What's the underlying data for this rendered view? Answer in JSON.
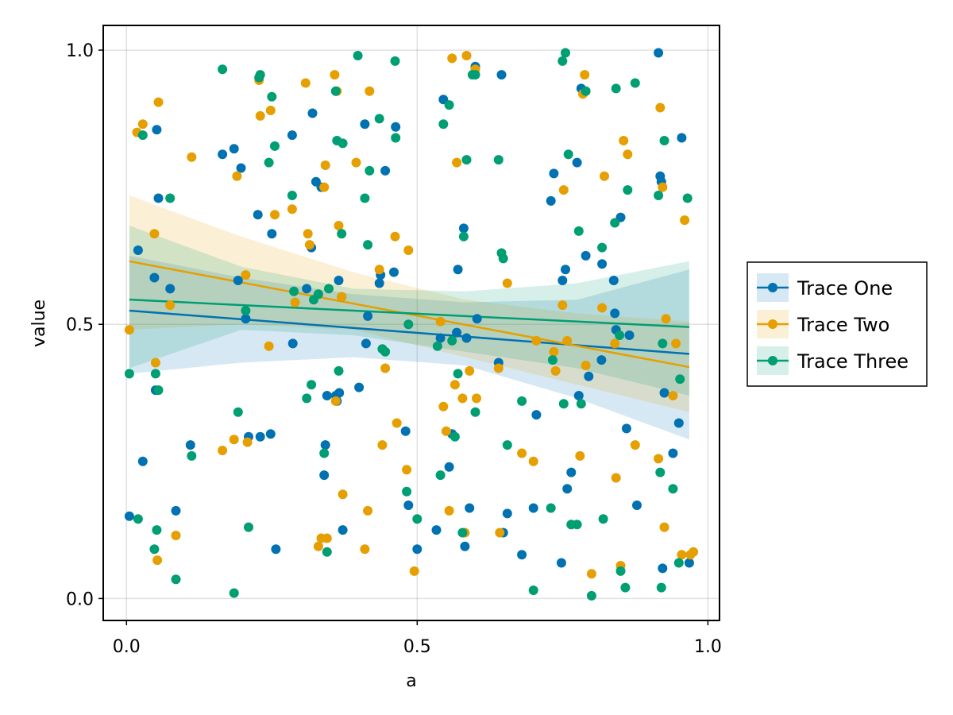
{
  "chart_data": {
    "type": "scatter",
    "title": "",
    "xlabel": "a",
    "ylabel": "value",
    "xlim": [
      -0.04,
      1.02
    ],
    "ylim": [
      -0.04,
      1.045
    ],
    "xticks": [
      0.0,
      0.5,
      1.0
    ],
    "yticks": [
      0.0,
      0.5,
      1.0
    ],
    "xtick_labels": [
      "0.0",
      "0.5",
      "1.0"
    ],
    "ytick_labels": [
      "0.0",
      "0.5",
      "1.0"
    ],
    "grid": true,
    "legend_position": "right",
    "series": [
      {
        "name": "Trace One",
        "color": "#0072B2",
        "fit": {
          "x0": 0.005,
          "y0": 0.525,
          "x1": 0.968,
          "y1": 0.446
        },
        "band": {
          "upper": [
            0.625,
            0.585,
            0.555,
            0.54,
            0.545,
            0.6
          ],
          "lower": [
            0.41,
            0.43,
            0.44,
            0.425,
            0.365,
            0.29
          ]
        },
        "x": [
          0.005,
          0.02,
          0.028,
          0.048,
          0.05,
          0.052,
          0.055,
          0.075,
          0.085,
          0.11,
          0.165,
          0.185,
          0.192,
          0.197,
          0.205,
          0.21,
          0.226,
          0.23,
          0.248,
          0.25,
          0.257,
          0.285,
          0.286,
          0.31,
          0.318,
          0.32,
          0.326,
          0.335,
          0.34,
          0.342,
          0.345,
          0.36,
          0.362,
          0.365,
          0.366,
          0.37,
          0.372,
          0.4,
          0.41,
          0.412,
          0.415,
          0.435,
          0.437,
          0.445,
          0.46,
          0.463,
          0.48,
          0.485,
          0.5,
          0.533,
          0.54,
          0.545,
          0.555,
          0.56,
          0.568,
          0.57,
          0.58,
          0.582,
          0.585,
          0.59,
          0.6,
          0.603,
          0.64,
          0.645,
          0.648,
          0.655,
          0.68,
          0.7,
          0.705,
          0.73,
          0.735,
          0.748,
          0.75,
          0.755,
          0.758,
          0.765,
          0.775,
          0.778,
          0.782,
          0.79,
          0.795,
          0.817,
          0.818,
          0.838,
          0.84,
          0.842,
          0.85,
          0.86,
          0.865,
          0.878,
          0.915,
          0.918,
          0.92,
          0.922,
          0.925,
          0.94,
          0.95,
          0.955,
          0.968
        ],
        "y": [
          0.15,
          0.635,
          0.25,
          0.585,
          0.38,
          0.855,
          0.73,
          0.565,
          0.16,
          0.28,
          0.81,
          0.82,
          0.58,
          0.785,
          0.51,
          0.295,
          0.7,
          0.295,
          0.3,
          0.665,
          0.09,
          0.845,
          0.465,
          0.565,
          0.64,
          0.885,
          0.76,
          0.75,
          0.225,
          0.28,
          0.37,
          0.37,
          0.36,
          0.58,
          0.375,
          0.55,
          0.125,
          0.385,
          0.865,
          0.465,
          0.515,
          0.575,
          0.59,
          0.78,
          0.595,
          0.86,
          0.305,
          0.17,
          0.09,
          0.125,
          0.475,
          0.91,
          0.24,
          0.3,
          0.485,
          0.6,
          0.675,
          0.095,
          0.475,
          0.165,
          0.97,
          0.51,
          0.43,
          0.955,
          0.12,
          0.155,
          0.08,
          0.165,
          0.335,
          0.725,
          0.775,
          0.065,
          0.58,
          0.6,
          0.2,
          0.23,
          0.795,
          0.37,
          0.93,
          0.625,
          0.405,
          0.435,
          0.61,
          0.58,
          0.52,
          0.49,
          0.695,
          0.31,
          0.48,
          0.17,
          0.995,
          0.77,
          0.76,
          0.055,
          0.375,
          0.265,
          0.32,
          0.84,
          0.065
        ]
      },
      {
        "name": "Trace Two",
        "color": "#E69F00",
        "fit": {
          "x0": 0.005,
          "y0": 0.615,
          "x1": 0.968,
          "y1": 0.422
        },
        "band": {
          "upper": [
            0.735,
            0.66,
            0.595,
            0.545,
            0.52,
            0.505
          ],
          "lower": [
            0.49,
            0.5,
            0.49,
            0.44,
            0.39,
            0.34
          ]
        },
        "x": [
          0.005,
          0.018,
          0.028,
          0.048,
          0.05,
          0.053,
          0.055,
          0.075,
          0.085,
          0.112,
          0.165,
          0.185,
          0.19,
          0.205,
          0.208,
          0.228,
          0.23,
          0.245,
          0.248,
          0.255,
          0.285,
          0.29,
          0.308,
          0.312,
          0.315,
          0.33,
          0.335,
          0.34,
          0.342,
          0.345,
          0.358,
          0.36,
          0.362,
          0.365,
          0.37,
          0.372,
          0.395,
          0.41,
          0.415,
          0.418,
          0.435,
          0.44,
          0.445,
          0.462,
          0.465,
          0.482,
          0.485,
          0.495,
          0.54,
          0.545,
          0.55,
          0.555,
          0.56,
          0.565,
          0.568,
          0.578,
          0.582,
          0.585,
          0.59,
          0.6,
          0.602,
          0.64,
          0.642,
          0.655,
          0.68,
          0.7,
          0.705,
          0.735,
          0.738,
          0.75,
          0.752,
          0.758,
          0.765,
          0.78,
          0.785,
          0.788,
          0.79,
          0.8,
          0.818,
          0.822,
          0.84,
          0.842,
          0.85,
          0.855,
          0.862,
          0.875,
          0.915,
          0.918,
          0.922,
          0.925,
          0.928,
          0.94,
          0.945,
          0.955,
          0.96,
          0.97,
          0.975
        ],
        "y": [
          0.49,
          0.85,
          0.865,
          0.665,
          0.43,
          0.07,
          0.905,
          0.535,
          0.115,
          0.805,
          0.27,
          0.29,
          0.77,
          0.59,
          0.285,
          0.945,
          0.88,
          0.46,
          0.89,
          0.7,
          0.71,
          0.54,
          0.94,
          0.665,
          0.645,
          0.095,
          0.11,
          0.75,
          0.79,
          0.11,
          0.955,
          0.36,
          0.925,
          0.68,
          0.55,
          0.19,
          0.795,
          0.09,
          0.16,
          0.925,
          0.6,
          0.28,
          0.42,
          0.66,
          0.32,
          0.235,
          0.635,
          0.05,
          0.505,
          0.35,
          0.305,
          0.16,
          0.985,
          0.39,
          0.795,
          0.365,
          0.12,
          0.99,
          0.415,
          0.965,
          0.365,
          0.42,
          0.12,
          0.575,
          0.265,
          0.25,
          0.47,
          0.45,
          0.415,
          0.535,
          0.745,
          0.47,
          0.135,
          0.26,
          0.92,
          0.955,
          0.425,
          0.045,
          0.53,
          0.77,
          0.465,
          0.22,
          0.06,
          0.835,
          0.81,
          0.28,
          0.255,
          0.895,
          0.75,
          0.13,
          0.51,
          0.37,
          0.465,
          0.08,
          0.69,
          0.08,
          0.085
        ]
      },
      {
        "name": "Trace Three",
        "color": "#009E73",
        "fit": {
          "x0": 0.005,
          "y0": 0.545,
          "x1": 0.968,
          "y1": 0.495
        },
        "band": {
          "upper": [
            0.68,
            0.605,
            0.565,
            0.56,
            0.575,
            0.615
          ],
          "lower": [
            0.42,
            0.49,
            0.48,
            0.45,
            0.42,
            0.37
          ]
        },
        "x": [
          0.005,
          0.02,
          0.028,
          0.048,
          0.05,
          0.052,
          0.055,
          0.075,
          0.085,
          0.112,
          0.165,
          0.185,
          0.192,
          0.205,
          0.21,
          0.228,
          0.23,
          0.245,
          0.25,
          0.255,
          0.285,
          0.288,
          0.31,
          0.318,
          0.322,
          0.33,
          0.34,
          0.345,
          0.348,
          0.36,
          0.362,
          0.365,
          0.37,
          0.372,
          0.398,
          0.41,
          0.415,
          0.418,
          0.435,
          0.44,
          0.445,
          0.462,
          0.463,
          0.482,
          0.485,
          0.5,
          0.535,
          0.54,
          0.545,
          0.555,
          0.56,
          0.565,
          0.57,
          0.578,
          0.58,
          0.585,
          0.595,
          0.6,
          0.6,
          0.64,
          0.645,
          0.648,
          0.655,
          0.68,
          0.7,
          0.73,
          0.733,
          0.75,
          0.752,
          0.755,
          0.76,
          0.765,
          0.775,
          0.778,
          0.782,
          0.79,
          0.8,
          0.818,
          0.82,
          0.84,
          0.842,
          0.848,
          0.85,
          0.858,
          0.862,
          0.875,
          0.915,
          0.918,
          0.92,
          0.922,
          0.925,
          0.94,
          0.95,
          0.952,
          0.965
        ],
        "y": [
          0.41,
          0.145,
          0.845,
          0.09,
          0.41,
          0.125,
          0.38,
          0.73,
          0.035,
          0.26,
          0.965,
          0.01,
          0.34,
          0.525,
          0.13,
          0.95,
          0.955,
          0.795,
          0.915,
          0.825,
          0.735,
          0.56,
          0.365,
          0.39,
          0.545,
          0.555,
          0.265,
          0.085,
          0.565,
          0.925,
          0.835,
          0.415,
          0.665,
          0.83,
          0.99,
          0.73,
          0.645,
          0.78,
          0.875,
          0.455,
          0.45,
          0.98,
          0.84,
          0.195,
          0.5,
          0.145,
          0.46,
          0.225,
          0.865,
          0.9,
          0.47,
          0.295,
          0.41,
          0.12,
          0.66,
          0.8,
          0.955,
          0.34,
          0.955,
          0.8,
          0.63,
          0.62,
          0.28,
          0.36,
          0.015,
          0.165,
          0.435,
          0.98,
          0.355,
          0.995,
          0.81,
          0.135,
          0.135,
          0.67,
          0.355,
          0.925,
          0.005,
          0.64,
          0.145,
          0.685,
          0.93,
          0.48,
          0.05,
          0.02,
          0.745,
          0.94,
          0.735,
          0.23,
          0.02,
          0.465,
          0.835,
          0.2,
          0.065,
          0.4,
          0.73
        ]
      }
    ]
  }
}
